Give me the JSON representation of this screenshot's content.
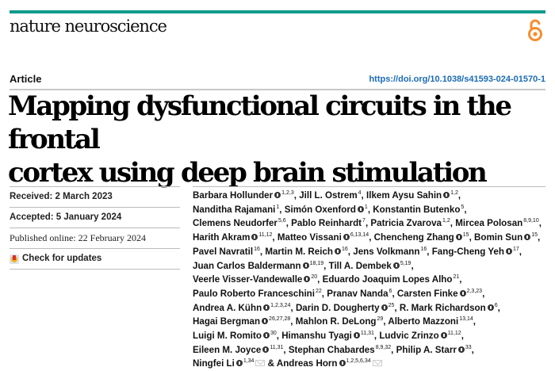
{
  "header": {
    "journal": "nature neuroscience",
    "accent_color": "#0f9a8d",
    "open_access_icon": "open-access-lock-icon",
    "open_access_color": "#f68d2e"
  },
  "article": {
    "type": "Article",
    "doi": "https://doi.org/10.1038/s41593-024-01570-1",
    "title_line1": "Mapping dysfunctional circuits in the frontal",
    "title_line2": "cortex using deep brain stimulation"
  },
  "meta": {
    "received": "Received: 2 March 2023",
    "accepted": "Accepted: 5 January 2024",
    "published": "Published online: 22 February 2024",
    "check_updates": "Check for updates"
  },
  "authors": [
    {
      "name": "Barbara Hollunder",
      "orcid": true,
      "aff": "1,2,3",
      "sep": ", "
    },
    {
      "name": "Jill L. Ostrem",
      "orcid": false,
      "aff": "4",
      "sep": ", "
    },
    {
      "name": "Ilkem Aysu Sahin",
      "orcid": true,
      "aff": "1,2",
      "sep": ", "
    },
    {
      "name": "Nanditha Rajamani",
      "orcid": false,
      "aff": "1",
      "sep": ", "
    },
    {
      "name": "Simón Oxenford",
      "orcid": true,
      "aff": "1",
      "sep": ", "
    },
    {
      "name": "Konstantin Butenko",
      "orcid": false,
      "aff": "5",
      "sep": ", "
    },
    {
      "name": "Clemens Neudorfer",
      "orcid": false,
      "aff": "5,6",
      "sep": ", "
    },
    {
      "name": "Pablo Reinhardt",
      "orcid": false,
      "aff": "7",
      "sep": ", "
    },
    {
      "name": "Patricia Zvarova",
      "orcid": false,
      "aff": "1,2",
      "sep": ", "
    },
    {
      "name": "Mircea Polosan",
      "orcid": false,
      "aff": "8,9,10",
      "sep": ", "
    },
    {
      "name": "Harith Akram",
      "orcid": true,
      "aff": "11,12",
      "sep": ", "
    },
    {
      "name": "Matteo Vissani",
      "orcid": true,
      "aff": "6,13,14",
      "sep": ", "
    },
    {
      "name": "Chencheng Zhang",
      "orcid": true,
      "aff": "15",
      "sep": ", "
    },
    {
      "name": "Bomin Sun",
      "orcid": true,
      "aff": "15",
      "sep": ", "
    },
    {
      "name": "Pavel Navratil",
      "orcid": false,
      "aff": "16",
      "sep": ", "
    },
    {
      "name": "Martin M. Reich",
      "orcid": true,
      "aff": "16",
      "sep": ", "
    },
    {
      "name": "Jens Volkmann",
      "orcid": false,
      "aff": "16",
      "sep": ", "
    },
    {
      "name": "Fang-Cheng Yeh",
      "orcid": true,
      "aff": "17",
      "sep": ", "
    },
    {
      "name": "Juan Carlos Baldermann",
      "orcid": true,
      "aff": "18,19",
      "sep": ", "
    },
    {
      "name": "Till A. Dembek",
      "orcid": true,
      "aff": "5,19",
      "sep": ", "
    },
    {
      "name": "Veerle Visser-Vandewalle",
      "orcid": true,
      "aff": "20",
      "sep": ", "
    },
    {
      "name": "Eduardo Joaquim Lopes Alho",
      "orcid": false,
      "aff": "21",
      "sep": ", "
    },
    {
      "name": "Paulo Roberto Franceschini",
      "orcid": false,
      "aff": "22",
      "sep": ", "
    },
    {
      "name": "Pranav Nanda",
      "orcid": false,
      "aff": "6",
      "sep": ", "
    },
    {
      "name": "Carsten Finke",
      "orcid": true,
      "aff": "2,3,23",
      "sep": ", "
    },
    {
      "name": "Andrea A. Kühn",
      "orcid": true,
      "aff": "1,2,3,24",
      "sep": ", "
    },
    {
      "name": "Darin D. Dougherty",
      "orcid": true,
      "aff": "25",
      "sep": ", "
    },
    {
      "name": "R. Mark Richardson",
      "orcid": true,
      "aff": "6",
      "sep": ", "
    },
    {
      "name": "Hagai Bergman",
      "orcid": true,
      "aff": "26,27,28",
      "sep": ", "
    },
    {
      "name": "Mahlon R. DeLong",
      "orcid": false,
      "aff": "29",
      "sep": ", "
    },
    {
      "name": "Alberto Mazzoni",
      "orcid": false,
      "aff": "13,14",
      "sep": ", "
    },
    {
      "name": "Luigi M. Romito",
      "orcid": true,
      "aff": "30",
      "sep": ", "
    },
    {
      "name": "Himanshu Tyagi",
      "orcid": true,
      "aff": "11,31",
      "sep": ", "
    },
    {
      "name": "Ludvic Zrinzo",
      "orcid": true,
      "aff": "11,12",
      "sep": ", "
    },
    {
      "name": "Eileen M. Joyce",
      "orcid": true,
      "aff": "11,31",
      "sep": ", "
    },
    {
      "name": "Stephan Chabardes",
      "orcid": false,
      "aff": "8,9,32",
      "sep": ", "
    },
    {
      "name": "Philip A. Starr",
      "orcid": true,
      "aff": "33",
      "sep": ", "
    },
    {
      "name": "Ningfei Li",
      "orcid": true,
      "aff": "1,34",
      "mail": true,
      "sep": " & "
    },
    {
      "name": "Andreas Horn",
      "orcid": true,
      "aff": "1,2,5,6,34",
      "mail": true,
      "sep": ""
    }
  ],
  "author_line_breaks": [
    2,
    5,
    9,
    13,
    17,
    19,
    21,
    24,
    27,
    30,
    33,
    36
  ]
}
